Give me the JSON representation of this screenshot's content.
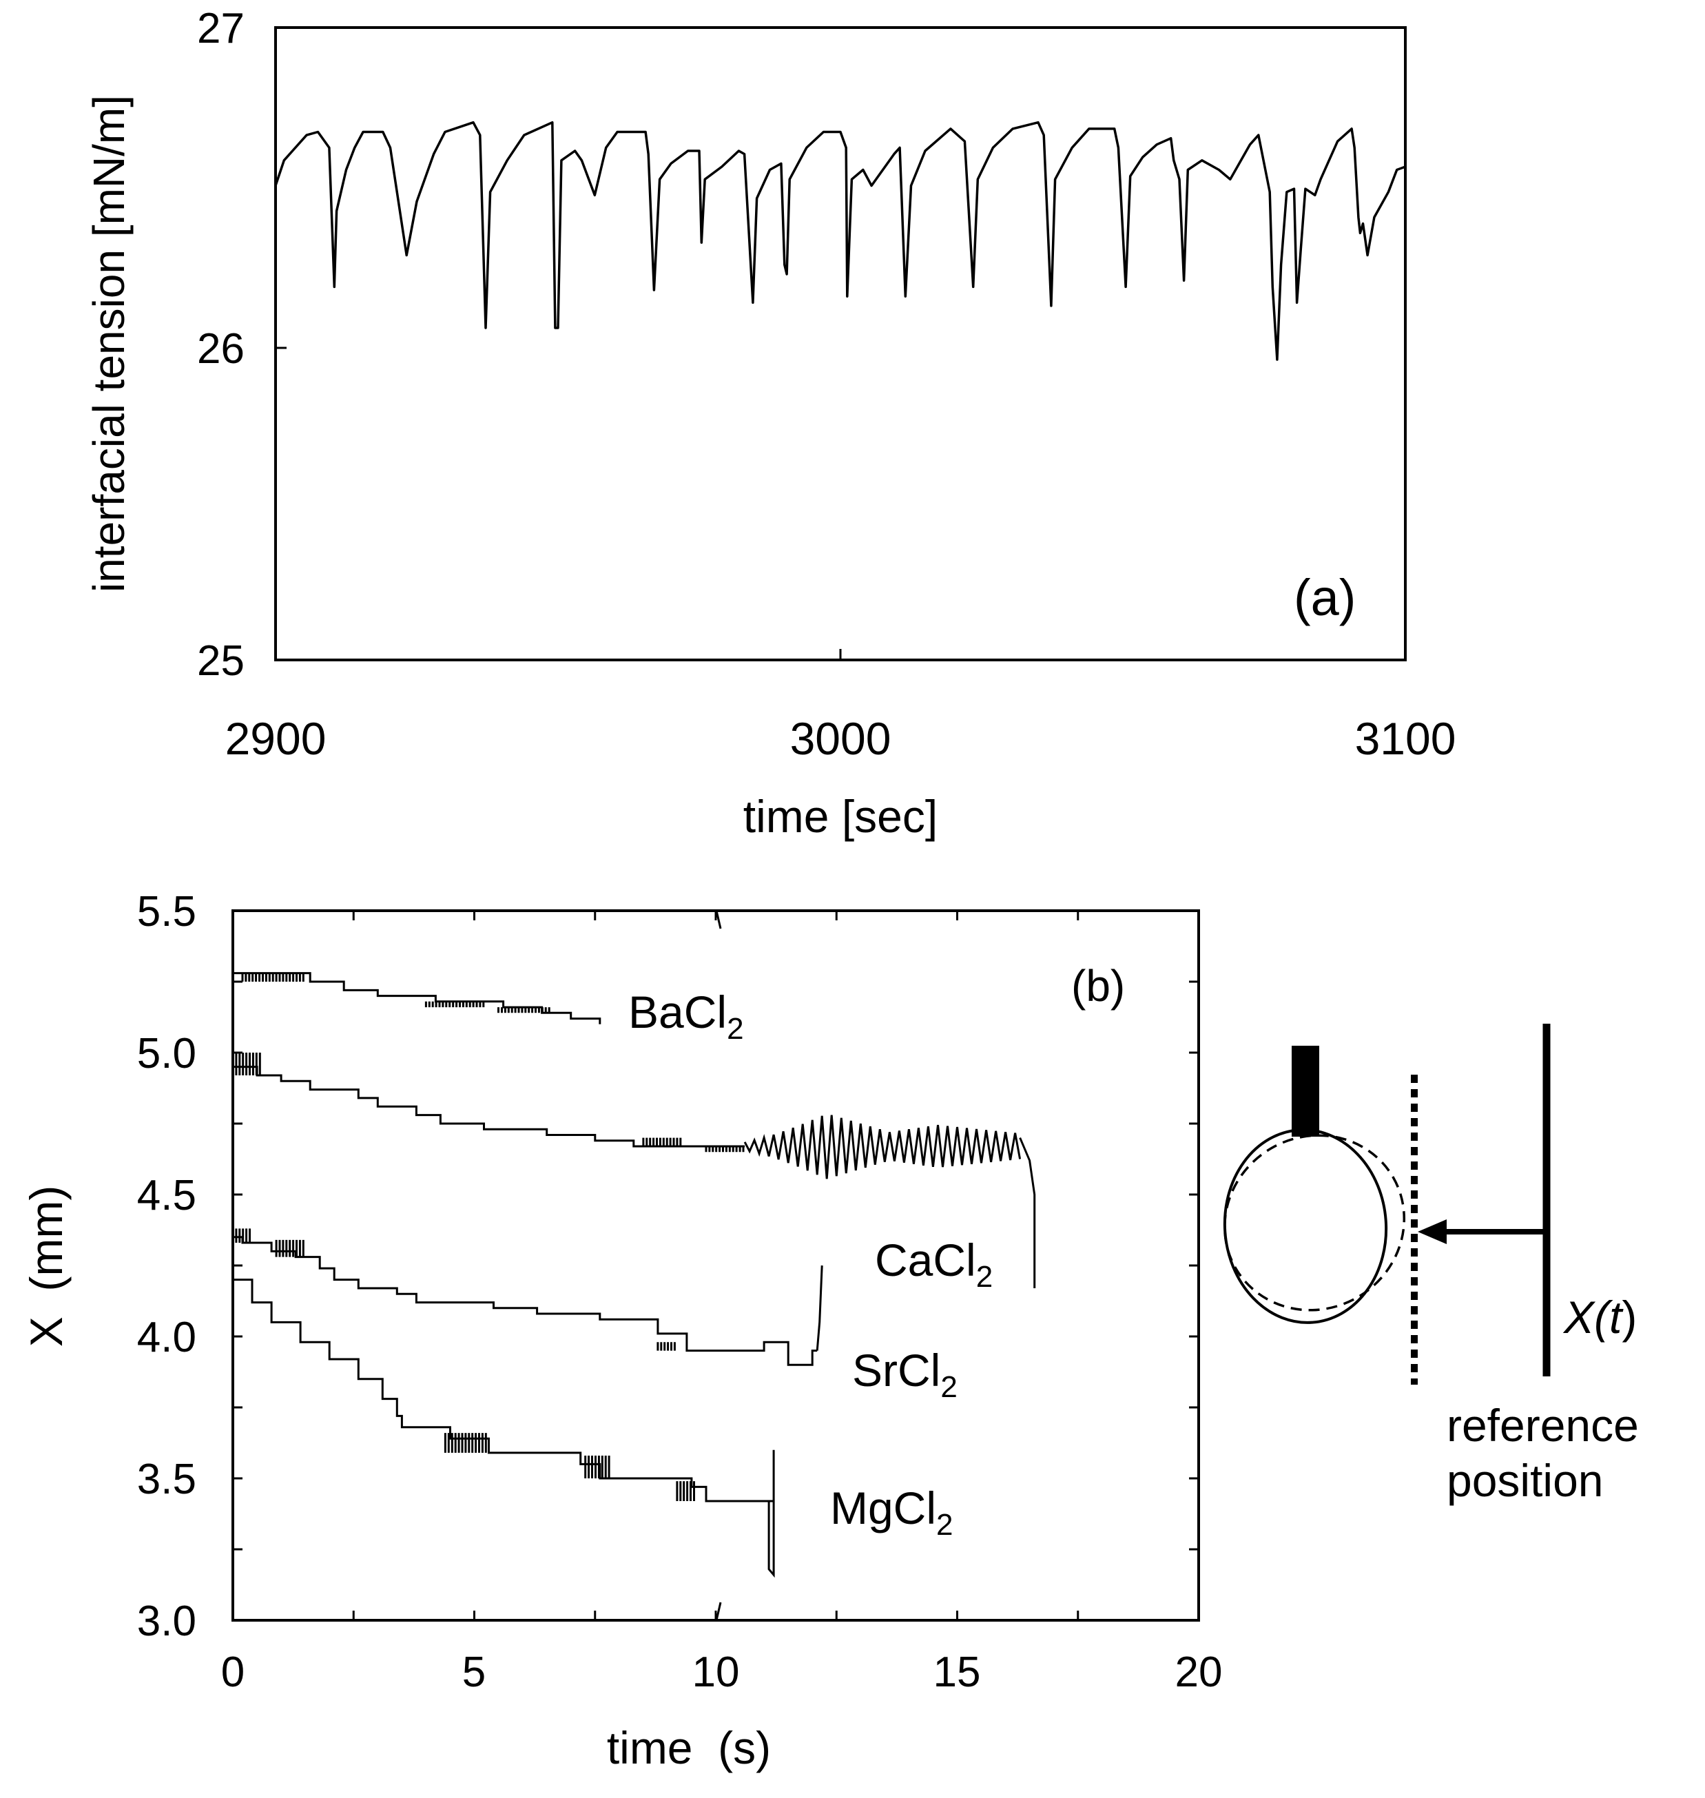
{
  "chart_data": [
    {
      "panel": "(a)",
      "type": "line",
      "xlabel": "time [sec]",
      "ylabel": "interfacial tension [mN/m]",
      "xlim": [
        2900,
        3100
      ],
      "ylim": [
        25,
        27
      ],
      "xticks": [
        "2900",
        "3000",
        "3100"
      ],
      "yticks": [
        "25",
        "26",
        "27"
      ],
      "series": [
        {
          "name": "interfacial tension",
          "points": [
            [
              2900.0,
              26.5
            ],
            [
              2901.5,
              26.58
            ],
            [
              2903.0,
              26.61
            ],
            [
              2905.5,
              26.66
            ],
            [
              2907.5,
              26.67
            ],
            [
              2909.5,
              26.62
            ],
            [
              2910.4,
              26.18
            ],
            [
              2910.8,
              26.42
            ],
            [
              2912.5,
              26.55
            ],
            [
              2914.0,
              26.62
            ],
            [
              2915.5,
              26.67
            ],
            [
              2919.0,
              26.67
            ],
            [
              2920.3,
              26.62
            ],
            [
              2923.2,
              26.28
            ],
            [
              2925.0,
              26.45
            ],
            [
              2928.0,
              26.6
            ],
            [
              2930.0,
              26.67
            ],
            [
              2935.0,
              26.7
            ],
            [
              2936.2,
              26.66
            ],
            [
              2937.2,
              26.05
            ],
            [
              2938.0,
              26.48
            ],
            [
              2941.0,
              26.58
            ],
            [
              2944.0,
              26.66
            ],
            [
              2949.0,
              26.7
            ],
            [
              2949.5,
              26.05
            ],
            [
              2950.0,
              26.05
            ],
            [
              2950.6,
              26.58
            ],
            [
              2953.0,
              26.61
            ],
            [
              2954.2,
              26.58
            ],
            [
              2956.5,
              26.47
            ],
            [
              2958.5,
              26.62
            ],
            [
              2960.5,
              26.67
            ],
            [
              2965.5,
              26.67
            ],
            [
              2966.0,
              26.6
            ],
            [
              2967.0,
              26.17
            ],
            [
              2968.0,
              26.52
            ],
            [
              2970.0,
              26.57
            ],
            [
              2973.0,
              26.61
            ],
            [
              2975.0,
              26.61
            ],
            [
              2975.4,
              26.32
            ],
            [
              2976.0,
              26.52
            ],
            [
              2979.0,
              26.56
            ],
            [
              2982.0,
              26.61
            ],
            [
              2983.0,
              26.6
            ],
            [
              2984.5,
              26.13
            ],
            [
              2985.2,
              26.46
            ],
            [
              2987.5,
              26.55
            ],
            [
              2989.5,
              26.57
            ],
            [
              2990.1,
              26.25
            ],
            [
              2990.5,
              26.22
            ],
            [
              2991.0,
              26.52
            ],
            [
              2994.0,
              26.62
            ],
            [
              2997.0,
              26.67
            ],
            [
              3000.0,
              26.67
            ],
            [
              3001.0,
              26.62
            ],
            [
              3001.2,
              26.15
            ],
            [
              3002.0,
              26.52
            ],
            [
              3004.0,
              26.55
            ],
            [
              3005.5,
              26.5
            ],
            [
              3009.5,
              26.6
            ],
            [
              3010.5,
              26.62
            ],
            [
              3011.5,
              26.15
            ],
            [
              3012.5,
              26.5
            ],
            [
              3015.0,
              26.61
            ],
            [
              3019.5,
              26.68
            ],
            [
              3022.0,
              26.64
            ],
            [
              3023.5,
              26.18
            ],
            [
              3024.3,
              26.52
            ],
            [
              3027.0,
              26.62
            ],
            [
              3030.5,
              26.68
            ],
            [
              3035.0,
              26.7
            ],
            [
              3036.0,
              26.66
            ],
            [
              3037.3,
              26.12
            ],
            [
              3038.0,
              26.52
            ],
            [
              3041.0,
              26.62
            ],
            [
              3044.0,
              26.68
            ],
            [
              3048.5,
              26.68
            ],
            [
              3049.2,
              26.62
            ],
            [
              3050.5,
              26.18
            ],
            [
              3051.3,
              26.53
            ],
            [
              3053.5,
              26.59
            ],
            [
              3056.0,
              26.63
            ],
            [
              3058.5,
              26.65
            ],
            [
              3059.0,
              26.58
            ],
            [
              3060.0,
              26.52
            ],
            [
              3060.8,
              26.2
            ],
            [
              3061.5,
              26.55
            ],
            [
              3064.0,
              26.58
            ],
            [
              3067.0,
              26.55
            ],
            [
              3069.0,
              26.52
            ],
            [
              3072.5,
              26.63
            ],
            [
              3074.0,
              26.66
            ],
            [
              3076.0,
              26.48
            ],
            [
              3076.5,
              26.18
            ],
            [
              3077.3,
              25.95
            ],
            [
              3078.0,
              26.25
            ],
            [
              3079.0,
              26.48
            ],
            [
              3080.3,
              26.49
            ],
            [
              3080.8,
              26.13
            ],
            [
              3081.5,
              26.3
            ],
            [
              3082.3,
              26.49
            ],
            [
              3084.0,
              26.47
            ],
            [
              3085.0,
              26.52
            ],
            [
              3088.0,
              26.64
            ],
            [
              3090.5,
              26.68
            ],
            [
              3091.0,
              26.62
            ],
            [
              3091.7,
              26.4
            ],
            [
              3092.0,
              26.35
            ],
            [
              3092.5,
              26.38
            ],
            [
              3093.3,
              26.28
            ],
            [
              3094.5,
              26.4
            ],
            [
              3097.0,
              26.48
            ],
            [
              3098.5,
              26.55
            ],
            [
              3100.0,
              26.56
            ]
          ]
        }
      ],
      "annotations": [
        "(a)"
      ]
    },
    {
      "panel": "(b)",
      "type": "line",
      "xlabel": "time  (s)",
      "ylabel": "X  (mm)",
      "xlim": [
        0,
        20
      ],
      "ylim": [
        3.0,
        5.5
      ],
      "xticks": [
        "0",
        "5",
        "10",
        "15",
        "20"
      ],
      "yticks": [
        "3.0",
        "3.5",
        "4.0",
        "4.5",
        "5.0",
        "5.5"
      ],
      "series": [
        {
          "name": "BaCl",
          "label_main": "BaCl",
          "label_sub": "2",
          "steps": [
            [
              0,
              5.28
            ],
            [
              1.6,
              5.25
            ],
            [
              2.3,
              5.22
            ],
            [
              3.0,
              5.2
            ],
            [
              4.2,
              5.18
            ],
            [
              5.6,
              5.16
            ],
            [
              6.4,
              5.14
            ],
            [
              7.0,
              5.12
            ],
            [
              7.6,
              5.1
            ]
          ],
          "end": 7.6,
          "chatter": [
            {
              "from": 0.2,
              "to": 1.5,
              "lo": 5.25,
              "hi": 5.28
            },
            {
              "from": 4.0,
              "to": 5.2,
              "lo": 5.16,
              "hi": 5.18
            },
            {
              "from": 5.5,
              "to": 6.6,
              "lo": 5.14,
              "hi": 5.16
            }
          ]
        },
        {
          "name": "CaCl",
          "label_main": "CaCl",
          "label_sub": "2",
          "steps": [
            [
              0,
              4.95
            ],
            [
              0.5,
              4.92
            ],
            [
              1.0,
              4.9
            ],
            [
              1.6,
              4.87
            ],
            [
              2.6,
              4.84
            ],
            [
              3.0,
              4.81
            ],
            [
              3.8,
              4.78
            ],
            [
              4.3,
              4.75
            ],
            [
              5.2,
              4.73
            ],
            [
              6.5,
              4.71
            ],
            [
              7.5,
              4.69
            ],
            [
              8.3,
              4.67
            ]
          ],
          "end": 10.6,
          "chatter": [
            {
              "from": 0.0,
              "to": 0.6,
              "lo": 4.92,
              "hi": 5.0
            },
            {
              "from": 8.5,
              "to": 9.3,
              "lo": 4.67,
              "hi": 4.7
            },
            {
              "from": 9.8,
              "to": 10.6,
              "lo": 4.65,
              "hi": 4.67
            }
          ],
          "oscillation": {
            "from": 10.6,
            "to": 16.3,
            "center": 4.66,
            "amp_min": 0.03,
            "amp_max": 0.23,
            "peak_t": 12.3,
            "period": 0.2
          },
          "tail": [
            [
              16.3,
              4.7
            ],
            [
              16.5,
              4.62
            ],
            [
              16.6,
              4.5
            ],
            [
              16.6,
              4.17
            ]
          ]
        },
        {
          "name": "SrCl",
          "label_main": "SrCl",
          "label_sub": "2",
          "steps": [
            [
              0,
              4.35
            ],
            [
              0.2,
              4.33
            ],
            [
              0.8,
              4.3
            ],
            [
              1.3,
              4.28
            ],
            [
              1.8,
              4.24
            ],
            [
              2.1,
              4.2
            ],
            [
              2.6,
              4.17
            ],
            [
              3.4,
              4.15
            ],
            [
              3.8,
              4.12
            ],
            [
              5.4,
              4.1
            ],
            [
              6.3,
              4.08
            ],
            [
              7.6,
              4.06
            ],
            [
              8.8,
              4.01
            ],
            [
              9.4,
              3.95
            ],
            [
              11.0,
              3.98
            ],
            [
              11.5,
              3.9
            ],
            [
              12.0,
              3.95
            ]
          ],
          "end": 12.1,
          "chatter": [
            {
              "from": 0.0,
              "to": 0.4,
              "lo": 4.33,
              "hi": 4.38
            },
            {
              "from": 0.9,
              "to": 1.5,
              "lo": 4.28,
              "hi": 4.34
            },
            {
              "from": 8.8,
              "to": 9.2,
              "lo": 3.95,
              "hi": 3.98
            }
          ],
          "tail": [
            [
              12.1,
              3.95
            ],
            [
              12.15,
              4.05
            ],
            [
              12.2,
              4.25
            ]
          ]
        },
        {
          "name": "MgCl",
          "label_main": "MgCl",
          "label_sub": "2",
          "steps": [
            [
              0,
              4.2
            ],
            [
              0.4,
              4.12
            ],
            [
              0.8,
              4.05
            ],
            [
              1.4,
              3.98
            ],
            [
              2.0,
              3.92
            ],
            [
              2.6,
              3.85
            ],
            [
              3.1,
              3.78
            ],
            [
              3.4,
              3.72
            ],
            [
              3.5,
              3.68
            ],
            [
              4.5,
              3.64
            ],
            [
              5.3,
              3.59
            ],
            [
              7.2,
              3.55
            ],
            [
              7.6,
              3.5
            ],
            [
              9.5,
              3.47
            ],
            [
              9.8,
              3.42
            ],
            [
              11.1,
              3.42
            ]
          ],
          "end": 11.2,
          "chatter": [
            {
              "from": 4.4,
              "to": 5.3,
              "lo": 3.59,
              "hi": 3.66
            },
            {
              "from": 7.3,
              "to": 7.8,
              "lo": 3.5,
              "hi": 3.58
            },
            {
              "from": 9.2,
              "to": 9.6,
              "lo": 3.42,
              "hi": 3.49
            }
          ],
          "tail": [
            [
              11.1,
              3.42
            ],
            [
              11.1,
              3.18
            ],
            [
              11.2,
              3.16
            ],
            [
              11.2,
              3.6
            ]
          ]
        }
      ],
      "annotations": [
        "(b)"
      ]
    }
  ],
  "diagram": {
    "xt_label_main": "X(",
    "xt_label_italic": "t",
    "xt_label_close": ")",
    "reference_line1": "reference",
    "reference_line2": "position"
  }
}
